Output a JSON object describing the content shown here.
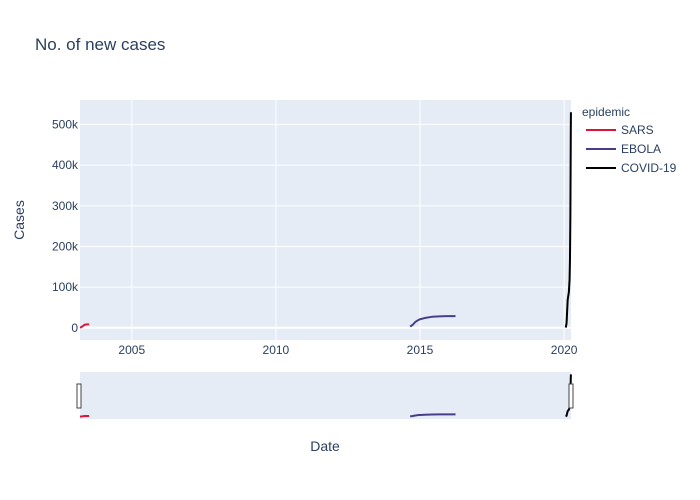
{
  "chart_data": {
    "type": "line",
    "title": "No. of new cases",
    "xlabel": "Date",
    "ylabel": "Cases",
    "x_range": [
      "2003-03-17",
      "2020-03-28"
    ],
    "ylim": [
      -30000,
      560000
    ],
    "x_ticks": [
      {
        "date": "2005-01-01",
        "label": "2005"
      },
      {
        "date": "2010-01-01",
        "label": "2010"
      },
      {
        "date": "2015-01-01",
        "label": "2015"
      },
      {
        "date": "2020-01-01",
        "label": "2020"
      }
    ],
    "y_ticks": [
      {
        "value": 0,
        "label": "0"
      },
      {
        "value": 100000,
        "label": "100k"
      },
      {
        "value": 200000,
        "label": "200k"
      },
      {
        "value": 300000,
        "label": "300k"
      },
      {
        "value": 400000,
        "label": "400k"
      },
      {
        "value": 500000,
        "label": "500k"
      }
    ],
    "grid": true,
    "legend": {
      "title": "epidemic",
      "position": "top-right"
    },
    "rangeslider": true,
    "series": [
      {
        "name": "SARS",
        "color": "#dc143c",
        "points": [
          {
            "x": "2003-03-17",
            "y": 167
          },
          {
            "x": "2003-04-01",
            "y": 1600
          },
          {
            "x": "2003-04-15",
            "y": 3200
          },
          {
            "x": "2003-05-01",
            "y": 5600
          },
          {
            "x": "2003-05-15",
            "y": 7500
          },
          {
            "x": "2003-06-01",
            "y": 8200
          },
          {
            "x": "2003-06-20",
            "y": 8400
          },
          {
            "x": "2003-07-11",
            "y": 8400
          }
        ]
      },
      {
        "name": "EBOLA",
        "color": "#483d8b",
        "points": [
          {
            "x": "2014-08-29",
            "y": 3000
          },
          {
            "x": "2014-10-01",
            "y": 7500
          },
          {
            "x": "2014-11-01",
            "y": 14000
          },
          {
            "x": "2014-12-01",
            "y": 18000
          },
          {
            "x": "2015-01-01",
            "y": 21000
          },
          {
            "x": "2015-03-01",
            "y": 24000
          },
          {
            "x": "2015-06-01",
            "y": 27000
          },
          {
            "x": "2015-09-01",
            "y": 28000
          },
          {
            "x": "2015-12-01",
            "y": 28600
          },
          {
            "x": "2016-03-26",
            "y": 28600
          }
        ]
      },
      {
        "name": "COVID-19",
        "color": "#000000",
        "points": [
          {
            "x": "2020-01-22",
            "y": 555
          },
          {
            "x": "2020-02-01",
            "y": 12000
          },
          {
            "x": "2020-02-15",
            "y": 69000
          },
          {
            "x": "2020-03-01",
            "y": 88000
          },
          {
            "x": "2020-03-10",
            "y": 119000
          },
          {
            "x": "2020-03-15",
            "y": 167000
          },
          {
            "x": "2020-03-20",
            "y": 272000
          },
          {
            "x": "2020-03-25",
            "y": 470000
          },
          {
            "x": "2020-03-27",
            "y": 530000
          }
        ]
      }
    ]
  }
}
